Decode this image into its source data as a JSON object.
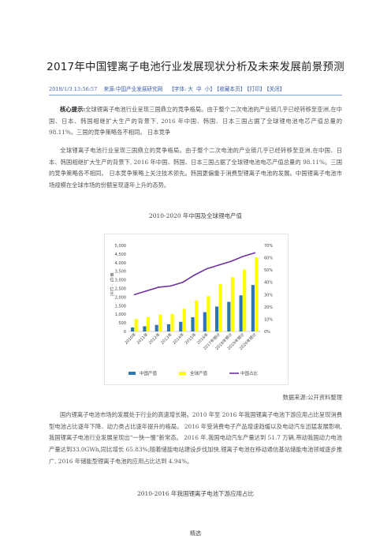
{
  "title": "2017年中国锂离子电池行业发展现状分析及未来发展前景预测",
  "meta": {
    "date": "2018/1/3 13:56:57",
    "source": "来源:中国产业发展研究网",
    "font_label": "【字体:",
    "font_big": "大",
    "font_mid": "中",
    "font_small": "小】",
    "favorite": "【收藏本页】",
    "print": "【打印】",
    "close": "【关闭】"
  },
  "summary": {
    "label": "核心提示:",
    "text": "全球锂离子电池行业呈现三国鼎立的竞争格局。由于整个二次电池的产业链几乎已经转移至亚洲,在中国、日本、韩国相继扩大生产的背景下, 2016 年中国、韩国、日本三国占据了全球锂电池电芯产值总量的 98.11%。三国的竞争策略各不相同。 日本竞争"
  },
  "para1": "全球锂离子电池行业呈现三国鼎立的竞争格局。由于整个二次电池的产业链几乎已经转移至亚洲,在中国、日本、韩国相继扩大生产的背景下, 2016 年中国、韩国、日本三国占据了全球锂电池电芯产值总量的 98.11%。三国的竞争策略各不相同。 日本竞争策略上关注技术领先。韩国更偏重于消费型锂离子电池的发展。中国锂离子电池市场规模在全球市场的份额呈现逐年上升的态势。",
  "chart1_title": "2010-2020 年中国及全球锂电产值",
  "chart_data": {
    "type": "bar",
    "categories": [
      "2010年",
      "2011年",
      "2012年",
      "2013年",
      "2014年",
      "2015年",
      "2016年",
      "2017年预计",
      "2018年预计",
      "2019年预计",
      "2020年预计"
    ],
    "series": [
      {
        "name": "中国产值",
        "type": "bar",
        "axis": "left",
        "color": "#2e75b6",
        "values": [
          230,
          300,
          380,
          420,
          560,
          830,
          1120,
          1450,
          1720,
          2100,
          2700
        ]
      },
      {
        "name": "全球产值",
        "type": "bar",
        "axis": "left",
        "color": "#ffff00",
        "values": [
          720,
          830,
          980,
          1020,
          1320,
          1800,
          2050,
          2750,
          3150,
          3600,
          4300
        ]
      },
      {
        "name": "中国占比",
        "type": "line",
        "axis": "right",
        "color": "#7030a0",
        "values": [
          0.3,
          0.33,
          0.36,
          0.37,
          0.4,
          0.46,
          0.51,
          0.54,
          0.57,
          0.61,
          0.64
        ]
      }
    ],
    "yticks_left": [
      "0",
      "500",
      "1,000",
      "1,500",
      "2,000",
      "2,500",
      "3,000",
      "3,500",
      "4,000",
      "4,500",
      "5,000"
    ],
    "ylim_left": [
      0,
      5000
    ],
    "yticks_right": [
      "0%",
      "10%",
      "20%",
      "30%",
      "40%",
      "50%",
      "60%",
      "70%"
    ],
    "ylim_right": [
      0,
      0.7
    ],
    "ylabel": "单位:亿元",
    "legend_position": "bottom",
    "grid": false
  },
  "chart1_source": "数据来源:公开资料整理",
  "para2": "国内锂离子电池市场的发展处于行业的高速增长期。2010 年至 2016 年我国锂离子电池下游应用占比呈现消费型电池占比逐年下降、动力类占比逐年提升的格局。 2016 年受消费电子产品增速趋缓以及电动汽车迅猛发展影响,我国锂离子电池行业发展呈现出“一快一慢”新常态。 2016 年,我国电动汽车产量达到 51.7 万辆,带动我国动力电池产量达到33.0GWh,同比增长 65.83%;随着储能电站建设步伐加快,锂离子电池在移动通信基站储能电池领域逐步推广, 2016 年储能型锂离子电池的应用占比达到 4.94%。",
  "chart2_title": "2010-2016 年我国锂离子电池下游应用占比",
  "footer": "精选"
}
